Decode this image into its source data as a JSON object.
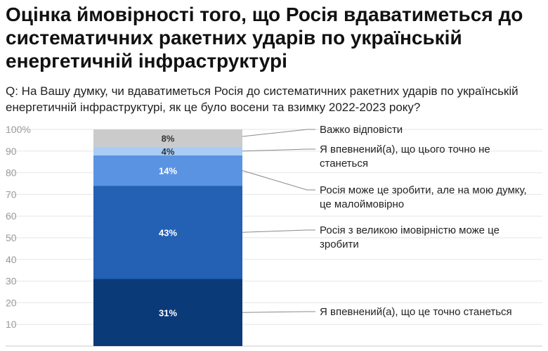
{
  "title": "Оцінка ймовірності того, що Росія вдаватиметься до систематичних ракетних ударів по українській енергетичній інфраструктурі",
  "subtitle": "Q: На Вашу думку, чи вдаватиметься Росія до систематичних ракетних ударів по українській енергетичній інфраструктурі, як це було восени та взимку 2022-2023 року?",
  "chart_data": {
    "type": "bar",
    "stacked": true,
    "ylim": [
      0,
      100
    ],
    "yticks": [
      "10",
      "20",
      "30",
      "40",
      "50",
      "60",
      "70",
      "80",
      "90",
      "100%"
    ],
    "grid": true,
    "series": [
      {
        "name": "Я впевнений(а), що це точно станеться",
        "value": 31,
        "label": "31%",
        "color": "#0b3a78",
        "legend_lines": [
          "Я впевнений(а), що це точно станеться"
        ]
      },
      {
        "name": "Росія з великою імовірністю може це зробити",
        "value": 43,
        "label": "43%",
        "color": "#2460b4",
        "legend_lines": [
          "Росія з великою імовірністю може це",
          "зробити"
        ]
      },
      {
        "name": "Росія може це зробити, але на мою думку, це малоймовірно",
        "value": 14,
        "label": "14%",
        "color": "#5b93e3",
        "legend_lines": [
          "Росія може це зробити, але на мою думку,",
          "це малоймовірно"
        ]
      },
      {
        "name": "Я впевнений(а), що цього точно не станеться",
        "value": 4,
        "label": "4%",
        "color": "#a9cdf4",
        "legend_lines": [
          "Я впевнений(а), що цього точно не",
          "станеться"
        ]
      },
      {
        "name": "Важко відповісти",
        "value": 8,
        "label": "8%",
        "color": "#cbcbcb",
        "legend_lines": [
          "Важко відповісти"
        ]
      }
    ]
  }
}
